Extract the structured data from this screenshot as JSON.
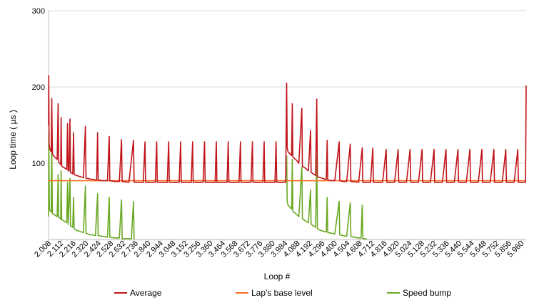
{
  "chart_data": {
    "type": "line",
    "title": "",
    "xlabel": "Loop #",
    "ylabel": "Loop time ( µs )",
    "ylim": [
      0,
      300
    ],
    "yticks": [
      100,
      200,
      300
    ],
    "xlim": [
      2008,
      6000
    ],
    "xticks": [
      "2.008",
      "2.112",
      "2.216",
      "2.320",
      "2.424",
      "2.528",
      "2.632",
      "2.736",
      "2.840",
      "2.944",
      "3.048",
      "3.152",
      "3.256",
      "3.360",
      "3.464",
      "3.568",
      "3.672",
      "3.776",
      "3.880",
      "3.984",
      "4.088",
      "4.192",
      "4.296",
      "4.400",
      "4.504",
      "4.608",
      "4.712",
      "4.816",
      "4.920",
      "5.024",
      "5.128",
      "5.232",
      "5.336",
      "5.440",
      "5.544",
      "5.648",
      "5.752",
      "5.856",
      "5.960"
    ],
    "grid": true,
    "legend_position": "bottom",
    "series": [
      {
        "name": "Average",
        "color": "#c0141a",
        "data": [
          [
            2008,
            150
          ],
          [
            2010,
            215
          ],
          [
            2013,
            125
          ],
          [
            2020,
            118
          ],
          [
            2030,
            115
          ],
          [
            2035,
            185
          ],
          [
            2040,
            112
          ],
          [
            2060,
            108
          ],
          [
            2080,
            105
          ],
          [
            2088,
            178
          ],
          [
            2093,
            102
          ],
          [
            2110,
            98
          ],
          [
            2113,
            160
          ],
          [
            2118,
            96
          ],
          [
            2140,
            94
          ],
          [
            2160,
            92
          ],
          [
            2167,
            152
          ],
          [
            2172,
            90
          ],
          [
            2180,
            90
          ],
          [
            2187,
            158
          ],
          [
            2192,
            88
          ],
          [
            2210,
            86
          ],
          [
            2217,
            140
          ],
          [
            2222,
            85
          ],
          [
            2240,
            84
          ],
          [
            2260,
            83
          ],
          [
            2280,
            82
          ],
          [
            2300,
            81
          ],
          [
            2316,
            148
          ],
          [
            2321,
            80
          ],
          [
            2340,
            80
          ],
          [
            2360,
            79
          ],
          [
            2380,
            79
          ],
          [
            2400,
            78
          ],
          [
            2410,
            78
          ],
          [
            2418,
            140
          ],
          [
            2423,
            78
          ],
          [
            2460,
            77
          ],
          [
            2500,
            77
          ],
          [
            2515,
            135
          ],
          [
            2520,
            77
          ],
          [
            2560,
            76
          ],
          [
            2600,
            76
          ],
          [
            2618,
            131
          ],
          [
            2623,
            76
          ],
          [
            2680,
            75
          ],
          [
            2718,
            130
          ],
          [
            2723,
            75
          ],
          [
            2760,
            75
          ],
          [
            2800,
            75
          ],
          [
            2814,
            128
          ],
          [
            2819,
            75
          ],
          [
            2900,
            75
          ],
          [
            2912,
            128
          ],
          [
            2917,
            75
          ],
          [
            3000,
            75
          ],
          [
            3012,
            128
          ],
          [
            3017,
            75
          ],
          [
            3100,
            75
          ],
          [
            3112,
            128
          ],
          [
            3117,
            75
          ],
          [
            3200,
            75
          ],
          [
            3212,
            128
          ],
          [
            3217,
            75
          ],
          [
            3300,
            75
          ],
          [
            3312,
            128
          ],
          [
            3317,
            75
          ],
          [
            3400,
            75
          ],
          [
            3410,
            128
          ],
          [
            3415,
            75
          ],
          [
            3500,
            75
          ],
          [
            3510,
            128
          ],
          [
            3515,
            75
          ],
          [
            3600,
            75
          ],
          [
            3612,
            128
          ],
          [
            3617,
            75
          ],
          [
            3700,
            75
          ],
          [
            3712,
            128
          ],
          [
            3717,
            75
          ],
          [
            3800,
            75
          ],
          [
            3810,
            128
          ],
          [
            3815,
            75
          ],
          [
            3900,
            75
          ],
          [
            3910,
            128
          ],
          [
            3915,
            75
          ],
          [
            3990,
            75
          ],
          [
            3998,
            205
          ],
          [
            4003,
            120
          ],
          [
            4010,
            115
          ],
          [
            4040,
            110
          ],
          [
            4045,
            178
          ],
          [
            4050,
            108
          ],
          [
            4080,
            104
          ],
          [
            4100,
            100
          ],
          [
            4125,
            172
          ],
          [
            4130,
            96
          ],
          [
            4150,
            94
          ],
          [
            4180,
            90
          ],
          [
            4198,
            143
          ],
          [
            4203,
            88
          ],
          [
            4230,
            85
          ],
          [
            4240,
            84
          ],
          [
            4250,
            184
          ],
          [
            4255,
            82
          ],
          [
            4280,
            81
          ],
          [
            4300,
            80
          ],
          [
            4320,
            79
          ],
          [
            4330,
            79
          ],
          [
            4337,
            130
          ],
          [
            4342,
            78
          ],
          [
            4380,
            77
          ],
          [
            4400,
            77
          ],
          [
            4437,
            128
          ],
          [
            4442,
            77
          ],
          [
            4470,
            76
          ],
          [
            4500,
            76
          ],
          [
            4530,
            125
          ],
          [
            4535,
            76
          ],
          [
            4600,
            75
          ],
          [
            4630,
            120
          ],
          [
            4635,
            75
          ],
          [
            4700,
            75
          ],
          [
            4718,
            120
          ],
          [
            4723,
            75
          ],
          [
            4800,
            75
          ],
          [
            4830,
            118
          ],
          [
            4835,
            75
          ],
          [
            4900,
            75
          ],
          [
            4930,
            118
          ],
          [
            4935,
            75
          ],
          [
            5000,
            75
          ],
          [
            5030,
            118
          ],
          [
            5035,
            75
          ],
          [
            5100,
            75
          ],
          [
            5130,
            118
          ],
          [
            5135,
            75
          ],
          [
            5200,
            75
          ],
          [
            5230,
            118
          ],
          [
            5235,
            75
          ],
          [
            5300,
            75
          ],
          [
            5330,
            118
          ],
          [
            5335,
            75
          ],
          [
            5400,
            75
          ],
          [
            5430,
            118
          ],
          [
            5435,
            75
          ],
          [
            5500,
            75
          ],
          [
            5530,
            118
          ],
          [
            5535,
            75
          ],
          [
            5600,
            75
          ],
          [
            5630,
            118
          ],
          [
            5635,
            75
          ],
          [
            5700,
            75
          ],
          [
            5730,
            118
          ],
          [
            5735,
            75
          ],
          [
            5800,
            75
          ],
          [
            5830,
            118
          ],
          [
            5835,
            75
          ],
          [
            5900,
            75
          ],
          [
            5930,
            118
          ],
          [
            5935,
            75
          ],
          [
            5995,
            75
          ],
          [
            6000,
            202
          ]
        ]
      },
      {
        "name": "Lap's base level",
        "color": "#ff6a1a",
        "data": [
          [
            2008,
            77
          ],
          [
            3995,
            77
          ],
          [
            3995,
            77
          ],
          [
            6000,
            77
          ]
        ]
      },
      {
        "name": "Speed bump",
        "color": "#6aa823",
        "data": [
          [
            2008,
            30
          ],
          [
            2010,
            140
          ],
          [
            2015,
            40
          ],
          [
            2020,
            38
          ],
          [
            2030,
            36
          ],
          [
            2035,
            125
          ],
          [
            2040,
            34
          ],
          [
            2060,
            32
          ],
          [
            2080,
            30
          ],
          [
            2088,
            85
          ],
          [
            2093,
            29
          ],
          [
            2110,
            27
          ],
          [
            2113,
            90
          ],
          [
            2118,
            26
          ],
          [
            2140,
            24
          ],
          [
            2160,
            22
          ],
          [
            2167,
            75
          ],
          [
            2172,
            20
          ],
          [
            2187,
            80
          ],
          [
            2192,
            18
          ],
          [
            2210,
            16
          ],
          [
            2217,
            55
          ],
          [
            2222,
            14
          ],
          [
            2240,
            12
          ],
          [
            2260,
            11
          ],
          [
            2280,
            10
          ],
          [
            2300,
            9
          ],
          [
            2316,
            70
          ],
          [
            2321,
            8
          ],
          [
            2340,
            7
          ],
          [
            2360,
            6
          ],
          [
            2380,
            6
          ],
          [
            2400,
            5
          ],
          [
            2418,
            60
          ],
          [
            2423,
            5
          ],
          [
            2460,
            4
          ],
          [
            2500,
            3
          ],
          [
            2515,
            55
          ],
          [
            2520,
            3
          ],
          [
            2560,
            2
          ],
          [
            2600,
            2
          ],
          [
            2618,
            52
          ],
          [
            2623,
            1
          ],
          [
            2680,
            1
          ],
          [
            2700,
            1
          ],
          [
            2718,
            50
          ],
          [
            2723,
            0
          ]
        ]
      },
      {
        "name": "Speed bump",
        "color": "#6aa823",
        "data": [
          [
            3998,
            110
          ],
          [
            4003,
            50
          ],
          [
            4010,
            45
          ],
          [
            4040,
            40
          ],
          [
            4045,
            105
          ],
          [
            4050,
            37
          ],
          [
            4080,
            33
          ],
          [
            4100,
            30
          ],
          [
            4125,
            95
          ],
          [
            4130,
            27
          ],
          [
            4150,
            25
          ],
          [
            4180,
            22
          ],
          [
            4198,
            65
          ],
          [
            4203,
            20
          ],
          [
            4230,
            17
          ],
          [
            4240,
            16
          ],
          [
            4250,
            108
          ],
          [
            4255,
            14
          ],
          [
            4280,
            12
          ],
          [
            4300,
            11
          ],
          [
            4320,
            10
          ],
          [
            4330,
            10
          ],
          [
            4337,
            55
          ],
          [
            4342,
            9
          ],
          [
            4380,
            8
          ],
          [
            4400,
            7
          ],
          [
            4437,
            50
          ],
          [
            4442,
            6
          ],
          [
            4470,
            5
          ],
          [
            4500,
            4
          ],
          [
            4530,
            48
          ],
          [
            4535,
            4
          ],
          [
            4560,
            3
          ],
          [
            4600,
            2
          ],
          [
            4620,
            2
          ],
          [
            4630,
            45
          ],
          [
            4635,
            1
          ],
          [
            4660,
            1
          ],
          [
            4670,
            0
          ]
        ]
      }
    ],
    "legend": [
      {
        "label": "Average",
        "color": "#c0141a"
      },
      {
        "label": "Lap's base level",
        "color": "#ff6a1a"
      },
      {
        "label": "Speed bump",
        "color": "#6aa823"
      }
    ]
  }
}
